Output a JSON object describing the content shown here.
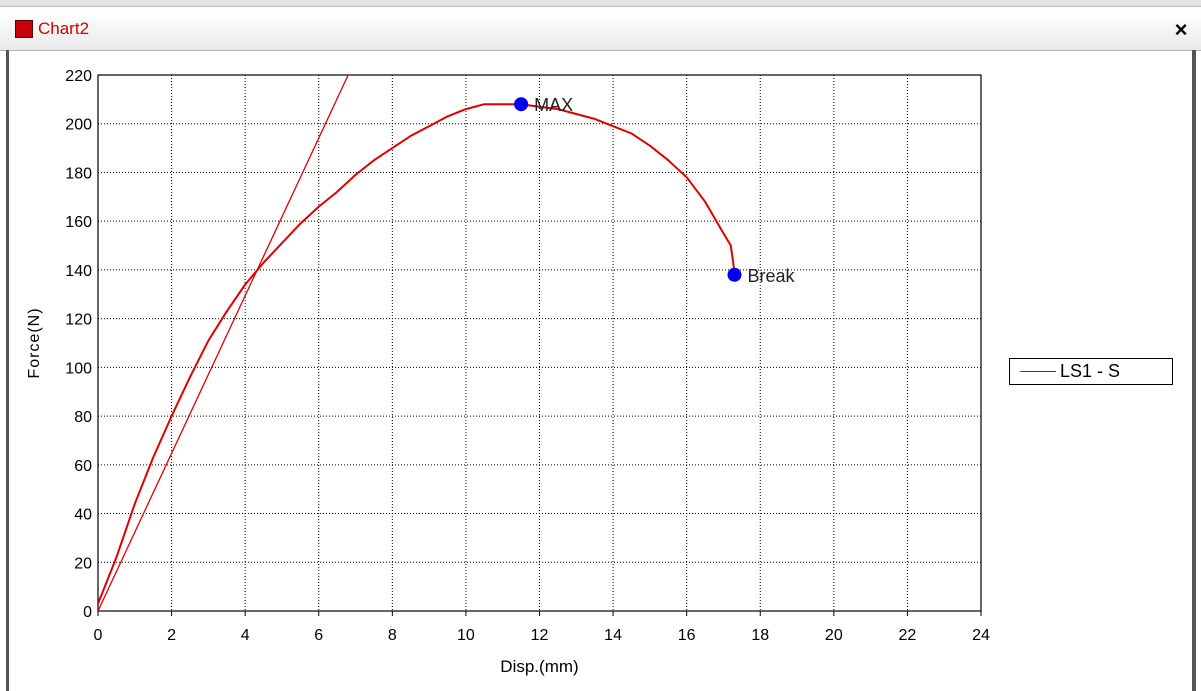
{
  "window": {
    "title": "Chart2",
    "close_label": "×"
  },
  "legend": {
    "label": "LS1 - S"
  },
  "colors": {
    "curve": "#e00000",
    "marker": "#0000ee",
    "title": "#d40000"
  },
  "chart_data": {
    "type": "line",
    "xlabel": "Disp.(mm)",
    "ylabel": "Force(N)",
    "xlim": [
      0,
      24
    ],
    "ylim": [
      0,
      220
    ],
    "x_ticks": [
      0,
      2,
      4,
      6,
      8,
      10,
      12,
      14,
      16,
      18,
      20,
      22,
      24
    ],
    "y_ticks": [
      0,
      20,
      40,
      60,
      80,
      100,
      120,
      140,
      160,
      180,
      200,
      220
    ],
    "grid": true,
    "legend_position": "right",
    "series": [
      {
        "name": "LS1 - S",
        "x": [
          0,
          0.5,
          1,
          1.5,
          2,
          2.5,
          3,
          3.5,
          4,
          4.5,
          5,
          5.5,
          6,
          6.5,
          7,
          7.5,
          8,
          8.5,
          9,
          9.5,
          10,
          10.5,
          11,
          11.5,
          12,
          12.5,
          13,
          13.5,
          14,
          14.5,
          15,
          15.5,
          16,
          16.5,
          17,
          17.2,
          17.3
        ],
        "y": [
          3,
          22,
          44,
          63,
          80,
          96,
          111,
          123,
          134,
          143,
          151,
          159,
          166,
          172,
          179,
          185,
          190,
          195,
          199,
          203,
          206,
          208,
          208,
          208,
          207,
          206,
          204,
          202,
          199,
          196,
          191,
          185,
          178,
          168,
          155,
          150,
          139
        ]
      }
    ],
    "reference_line": {
      "x": [
        0,
        6.8
      ],
      "y": [
        0,
        220
      ]
    },
    "annotations": [
      {
        "label": "MAX",
        "x": 11.5,
        "y": 208
      },
      {
        "label": "Break",
        "x": 17.3,
        "y": 138
      }
    ]
  }
}
